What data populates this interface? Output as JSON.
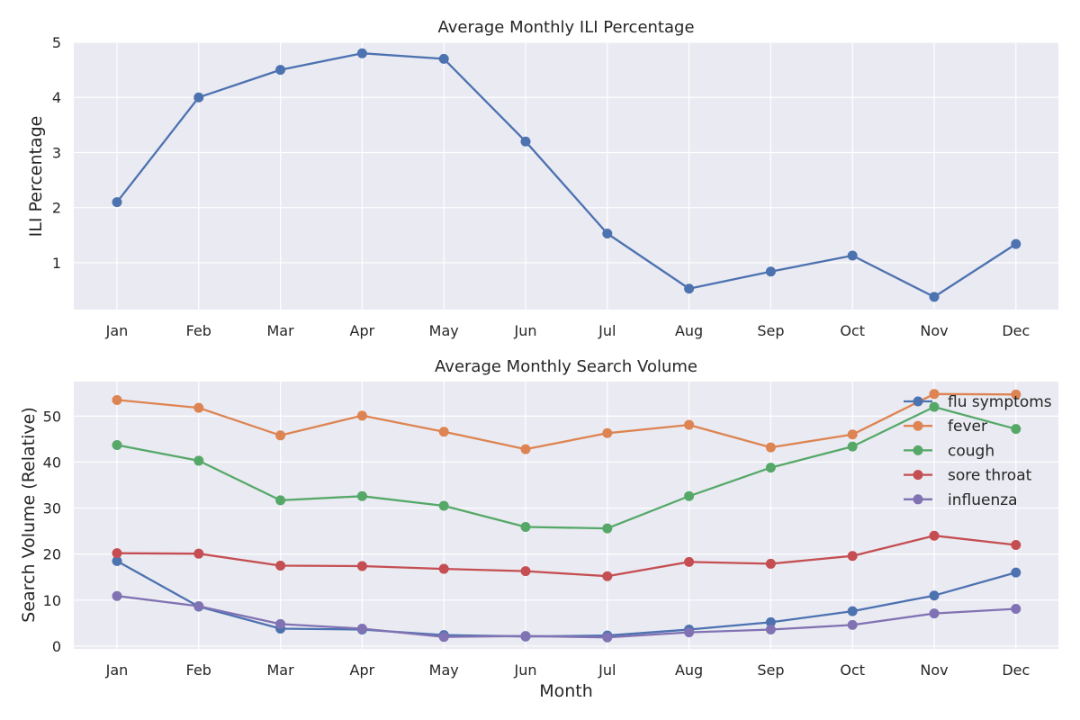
{
  "chart_data": [
    {
      "type": "line",
      "title": "Average Monthly ILI Percentage",
      "xlabel": "",
      "ylabel": "ILI Percentage",
      "categories": [
        "Jan",
        "Feb",
        "Mar",
        "Apr",
        "May",
        "Jun",
        "Jul",
        "Aug",
        "Sep",
        "Oct",
        "Nov",
        "Dec"
      ],
      "ylim": [
        0.15,
        5.0
      ],
      "yticks": [
        1,
        2,
        3,
        4,
        5
      ],
      "grid": true,
      "series": [
        {
          "values": [
            2.1,
            4.0,
            4.5,
            4.8,
            4.7,
            3.2,
            1.53,
            0.53,
            0.84,
            1.13,
            0.38,
            1.34
          ],
          "color": "#4c72b0"
        }
      ]
    },
    {
      "type": "line",
      "title": "Average Monthly Search Volume",
      "xlabel": "Month",
      "ylabel": "Search Volume (Relative)",
      "categories": [
        "Jan",
        "Feb",
        "Mar",
        "Apr",
        "May",
        "Jun",
        "Jul",
        "Aug",
        "Sep",
        "Oct",
        "Nov",
        "Dec"
      ],
      "ylim": [
        -0.6,
        57.5
      ],
      "yticks": [
        0,
        10,
        20,
        30,
        40,
        50
      ],
      "grid": true,
      "legend_position": "top-right",
      "series": [
        {
          "name": "flu symptoms",
          "color": "#4c72b0",
          "values": [
            18.5,
            8.6,
            3.8,
            3.6,
            2.4,
            2.1,
            2.3,
            3.6,
            5.2,
            7.6,
            11.0,
            16.0
          ]
        },
        {
          "name": "fever",
          "color": "#dd8452",
          "values": [
            53.5,
            51.8,
            45.8,
            50.1,
            46.6,
            42.8,
            46.3,
            48.1,
            43.2,
            46.0,
            54.8,
            54.7
          ]
        },
        {
          "name": "cough",
          "color": "#55a868",
          "values": [
            43.7,
            40.3,
            31.7,
            32.6,
            30.5,
            25.9,
            25.6,
            32.6,
            38.8,
            43.4,
            52.0,
            47.2
          ]
        },
        {
          "name": "sore throat",
          "color": "#c44e52",
          "values": [
            20.2,
            20.1,
            17.5,
            17.4,
            16.8,
            16.3,
            15.2,
            18.3,
            17.9,
            19.6,
            24.0,
            22.0
          ]
        },
        {
          "name": "influenza",
          "color": "#8172b3",
          "values": [
            10.9,
            8.7,
            4.8,
            3.8,
            2.0,
            2.2,
            1.9,
            3.0,
            3.6,
            4.6,
            7.1,
            8.1
          ]
        }
      ]
    }
  ]
}
